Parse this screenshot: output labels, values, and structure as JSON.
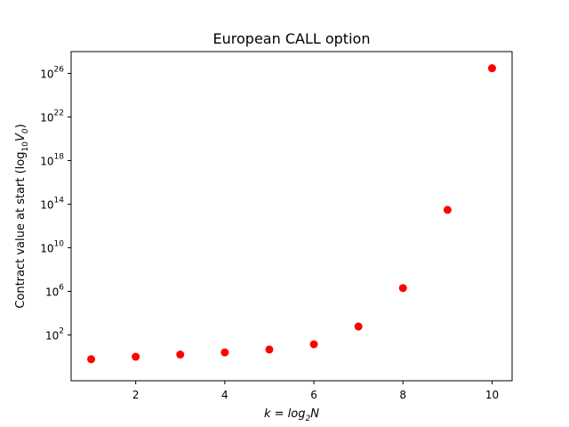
{
  "chart_data": {
    "type": "scatter",
    "title": "European CALL option",
    "xlabel": {
      "prefix": "k = log",
      "sub1": "2",
      "suffix": "N"
    },
    "ylabel": {
      "prefix": "Contract value at start (log",
      "sub1": "10",
      "mid": "V",
      "sub2": "0",
      "suffix": ")"
    },
    "x": [
      1,
      2,
      3,
      4,
      5,
      6,
      7,
      8,
      9,
      10
    ],
    "y": [
      0.6,
      1.0,
      1.6,
      2.5,
      4.6,
      14,
      600,
      2000000,
      30000000000000.0,
      3e+26
    ],
    "xlim": [
      0.55,
      10.45
    ],
    "ylim_log10": [
      -2.2,
      28.0
    ],
    "y_scale": "log",
    "xticks": [
      2,
      4,
      6,
      8,
      10
    ],
    "yticks": [
      {
        "base": "10",
        "exp": "2",
        "value": 100
      },
      {
        "base": "10",
        "exp": "6",
        "value": 1000000
      },
      {
        "base": "10",
        "exp": "10",
        "value": 10000000000
      },
      {
        "base": "10",
        "exp": "14",
        "value": 100000000000000.0
      },
      {
        "base": "10",
        "exp": "18",
        "value": 1e+18
      },
      {
        "base": "10",
        "exp": "22",
        "value": 1e+22
      },
      {
        "base": "10",
        "exp": "26",
        "value": 1e+26
      }
    ],
    "marker_color": "#ff0000",
    "grid": false,
    "legend": "none"
  }
}
